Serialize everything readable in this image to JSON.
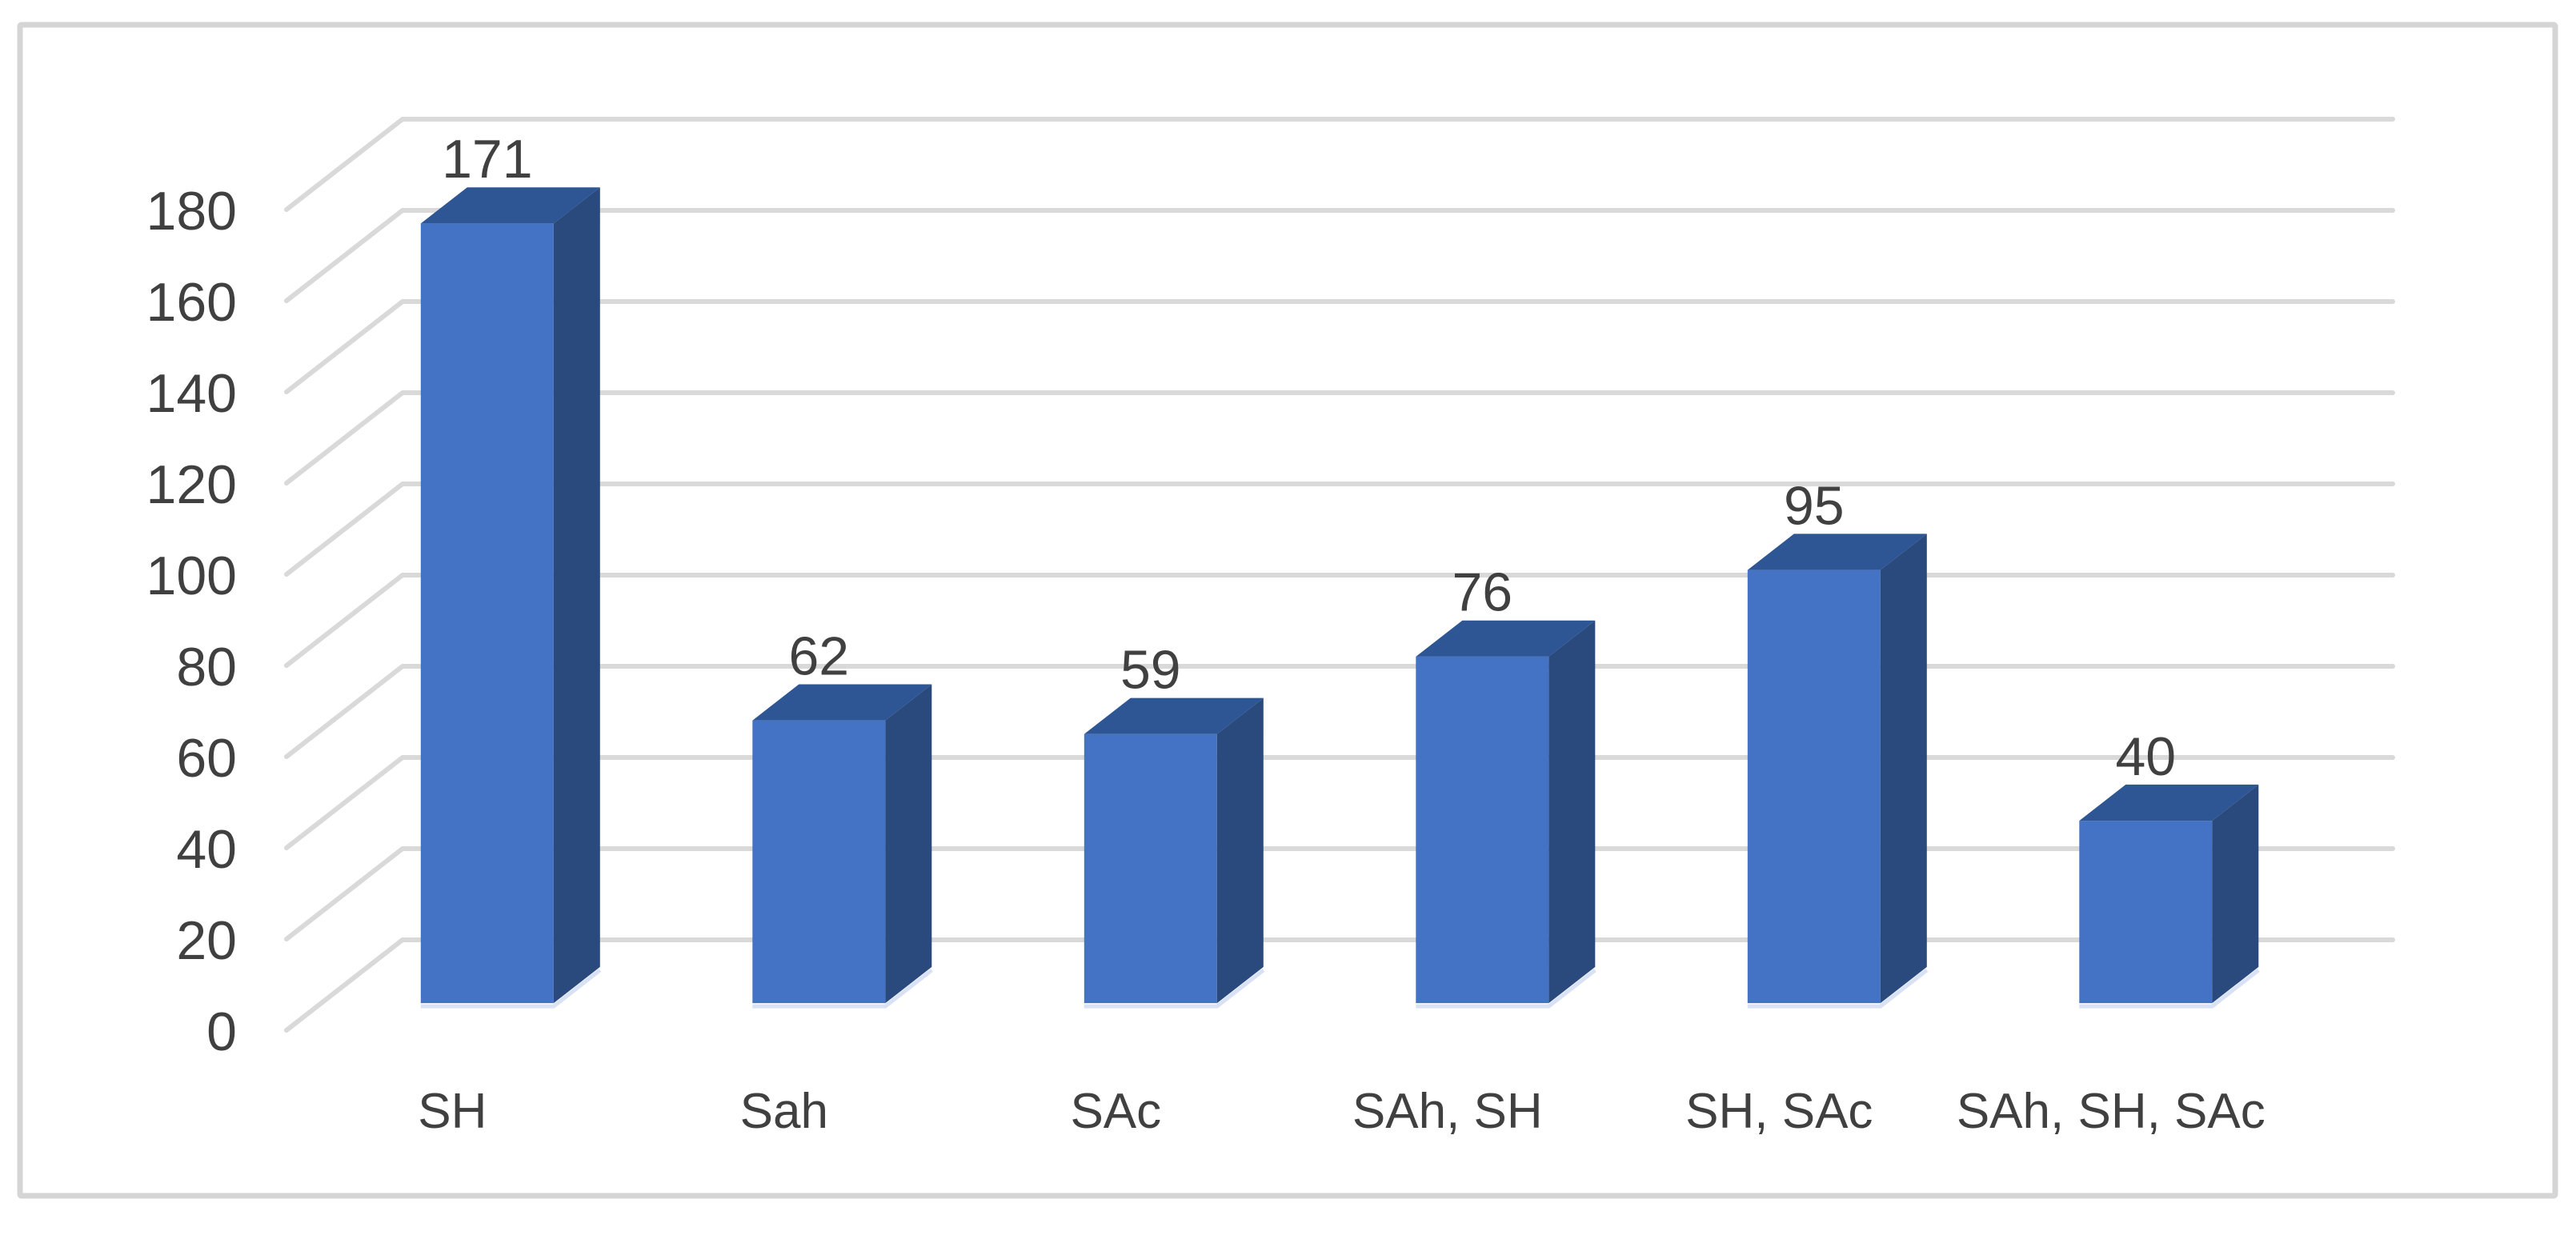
{
  "chart_data": {
    "type": "bar",
    "subtype": "3d-column",
    "title": "",
    "xlabel": "",
    "ylabel": "",
    "categories": [
      "SH",
      "Sah",
      "SAc",
      "SAh, SH",
      "SH, SAc",
      "SAh, SH, SAc"
    ],
    "values": [
      171,
      62,
      59,
      76,
      95,
      40
    ],
    "data_labels": [
      "171",
      "62",
      "59",
      "76",
      "95",
      "40"
    ],
    "ylim": [
      0,
      180
    ],
    "ytick_step": 20,
    "yticks": [
      0,
      20,
      40,
      60,
      80,
      100,
      120,
      140,
      160,
      180
    ],
    "grid": true,
    "legend": "none",
    "colors": {
      "bar_front": "#4472C4",
      "bar_top": "#2E5694",
      "bar_side": "#2A4A7E",
      "bar_bottom_highlight": "#D9E2F4",
      "gridline": "#D9D9D9",
      "text": "#404040",
      "border": "#D5D5D5",
      "background": "#FFFFFF"
    }
  }
}
